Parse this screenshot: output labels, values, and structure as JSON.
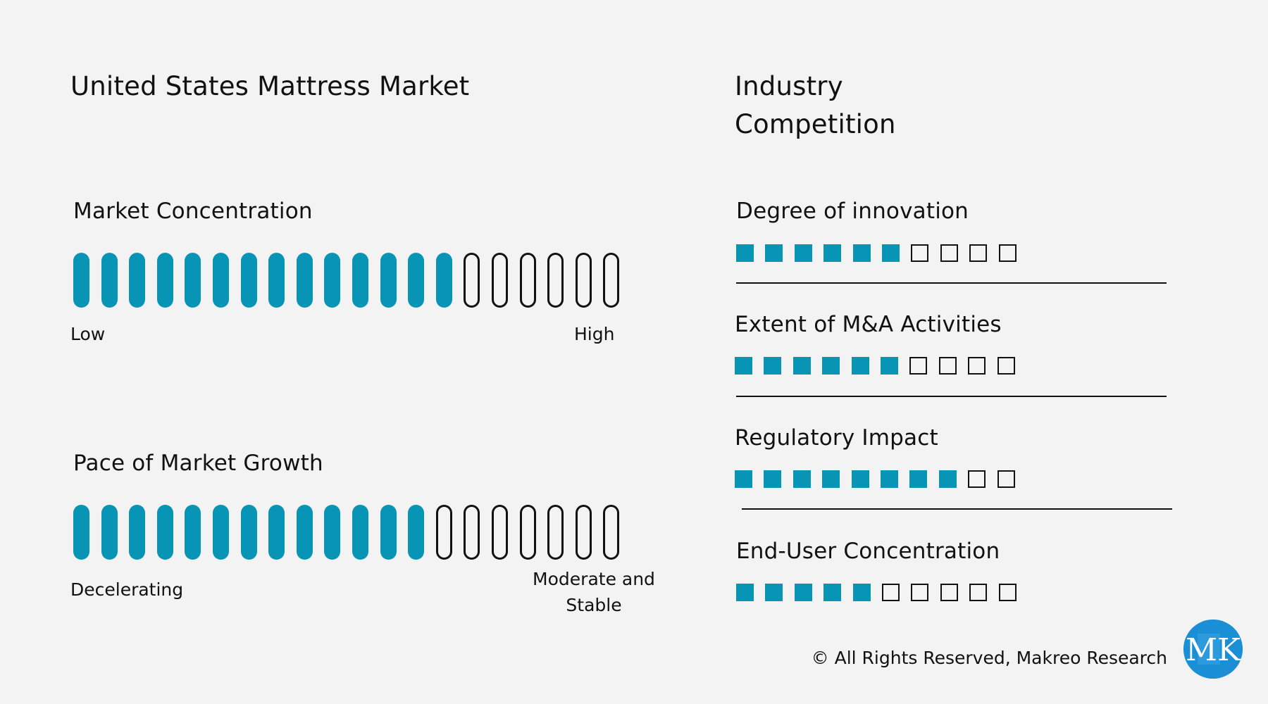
{
  "title": "United States Mattress Market",
  "industry_competition_title": [
    "Industry",
    "Competition"
  ],
  "market_concentration": {
    "label": "Market Concentration",
    "total_bars": 20,
    "filled_bars": 14,
    "low_label": "Low",
    "high_label": "High"
  },
  "pace_of_growth": {
    "label": "Pace of Market Growth",
    "total_bars": 20,
    "filled_bars": 13,
    "low_label": "Decelerating",
    "high_label_lines": [
      "Moderate and",
      "Stable"
    ]
  },
  "competition_items": [
    {
      "label": "Degree of innovation",
      "filled": 6,
      "total": 10
    },
    {
      "label": "Extent of M&A Activities",
      "filled": 6,
      "total": 10
    },
    {
      "label": "Regulatory Impact",
      "filled": 8,
      "total": 10
    },
    {
      "label": "End-User Concentration",
      "filled": 5,
      "total": 10
    }
  ],
  "footer": "© All Rights Reserved, Makreo Research",
  "logo_text": "MK",
  "colors": {
    "accent": "#0895b5",
    "logo": "#1b8fd6",
    "background": "#f3f3f3"
  }
}
